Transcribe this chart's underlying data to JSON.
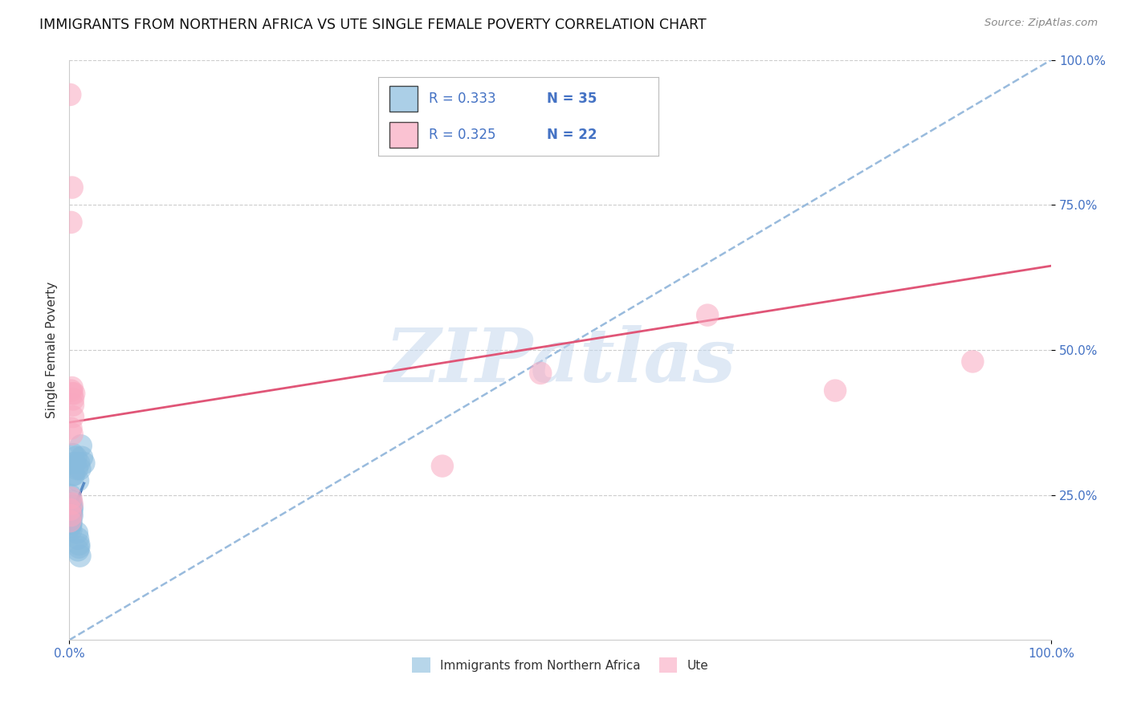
{
  "title": "IMMIGRANTS FROM NORTHERN AFRICA VS UTE SINGLE FEMALE POVERTY CORRELATION CHART",
  "source": "Source: ZipAtlas.com",
  "ylabel": "Single Female Poverty",
  "legend_label1": "Immigrants from Northern Africa",
  "legend_label2": "Ute",
  "r1": "0.333",
  "n1": "35",
  "r2": "0.325",
  "n2": "22",
  "blue_color": "#88bbdd",
  "pink_color": "#f9a8c0",
  "blue_line_color": "#2255aa",
  "pink_line_color": "#e05577",
  "dashed_line_color": "#99bbdd",
  "background_color": "#ffffff",
  "tick_color": "#4472c4",
  "scatter_blue": [
    [
      0.001,
      0.22
    ],
    [
      0.002,
      0.2
    ],
    [
      0.002,
      0.19
    ],
    [
      0.001,
      0.21
    ],
    [
      0.003,
      0.23
    ],
    [
      0.001,
      0.222
    ],
    [
      0.002,
      0.24
    ],
    [
      0.001,
      0.235
    ],
    [
      0.001,
      0.2
    ],
    [
      0.002,
      0.215
    ],
    [
      0.003,
      0.225
    ],
    [
      0.002,
      0.205
    ],
    [
      0.001,
      0.195
    ],
    [
      0.002,
      0.22
    ],
    [
      0.003,
      0.215
    ],
    [
      0.001,
      0.25
    ],
    [
      0.004,
      0.285
    ],
    [
      0.005,
      0.305
    ],
    [
      0.004,
      0.32
    ],
    [
      0.006,
      0.305
    ],
    [
      0.007,
      0.315
    ],
    [
      0.008,
      0.295
    ],
    [
      0.005,
      0.285
    ],
    [
      0.009,
      0.275
    ],
    [
      0.01,
      0.305
    ],
    [
      0.012,
      0.335
    ],
    [
      0.013,
      0.315
    ],
    [
      0.011,
      0.295
    ],
    [
      0.015,
      0.305
    ],
    [
      0.008,
      0.185
    ],
    [
      0.009,
      0.175
    ],
    [
      0.01,
      0.165
    ],
    [
      0.009,
      0.155
    ],
    [
      0.011,
      0.145
    ],
    [
      0.01,
      0.16
    ]
  ],
  "scatter_pink": [
    [
      0.001,
      0.94
    ],
    [
      0.002,
      0.72
    ],
    [
      0.003,
      0.78
    ],
    [
      0.002,
      0.43
    ],
    [
      0.003,
      0.435
    ],
    [
      0.003,
      0.425
    ],
    [
      0.004,
      0.385
    ],
    [
      0.004,
      0.405
    ],
    [
      0.004,
      0.415
    ],
    [
      0.002,
      0.365
    ],
    [
      0.003,
      0.355
    ],
    [
      0.005,
      0.425
    ],
    [
      0.001,
      0.225
    ],
    [
      0.002,
      0.245
    ],
    [
      0.003,
      0.235
    ],
    [
      0.001,
      0.205
    ],
    [
      0.002,
      0.215
    ],
    [
      0.48,
      0.46
    ],
    [
      0.38,
      0.3
    ],
    [
      0.65,
      0.56
    ],
    [
      0.78,
      0.43
    ],
    [
      0.92,
      0.48
    ]
  ],
  "blue_trendline_x": [
    0.0,
    0.015
  ],
  "blue_trendline_y": [
    0.205,
    0.27
  ],
  "pink_trendline_x": [
    0.0,
    1.0
  ],
  "pink_trendline_y": [
    0.375,
    0.645
  ],
  "dashed_trendline_x": [
    0.0,
    1.0
  ],
  "dashed_trendline_y": [
    0.0,
    1.0
  ],
  "watermark_text": "ZIPatlas",
  "xlim": [
    0.0,
    1.0
  ],
  "ylim": [
    0.0,
    1.0
  ],
  "yticks": [
    0.25,
    0.5,
    0.75,
    1.0
  ],
  "ytick_labels": [
    "25.0%",
    "50.0%",
    "75.0%",
    "100.0%"
  ],
  "xticks": [
    0.0,
    1.0
  ],
  "xtick_labels": [
    "0.0%",
    "100.0%"
  ]
}
